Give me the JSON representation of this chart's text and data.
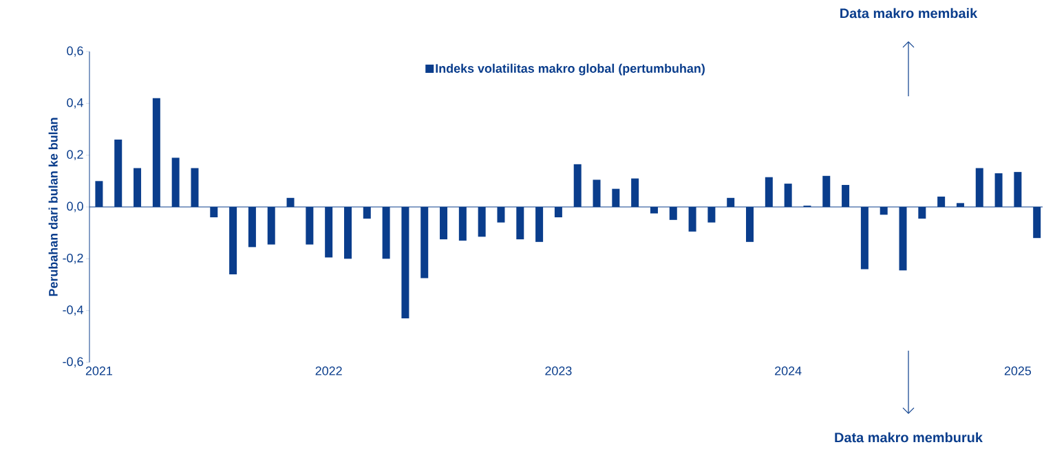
{
  "chart_data": {
    "type": "bar",
    "ylabel": "Perubahan dari bulan ke bulan",
    "categories": [
      "2021",
      null,
      null,
      null,
      null,
      null,
      null,
      null,
      null,
      null,
      null,
      null,
      "2022",
      null,
      null,
      null,
      null,
      null,
      null,
      null,
      null,
      null,
      null,
      null,
      "2023",
      null,
      null,
      null,
      null,
      null,
      null,
      null,
      null,
      null,
      null,
      null,
      "2024",
      null,
      null,
      null,
      null,
      null,
      null,
      null,
      null,
      null,
      null,
      null,
      "2025",
      null
    ],
    "series": [
      {
        "name": "Indeks volatilitas makro global (pertumbuhan)",
        "color": "#0a3d8c",
        "values": [
          0.1,
          0.26,
          0.15,
          0.42,
          0.19,
          0.15,
          -0.04,
          -0.26,
          -0.155,
          -0.145,
          0.035,
          -0.145,
          -0.195,
          -0.2,
          -0.045,
          -0.2,
          -0.43,
          -0.275,
          -0.125,
          -0.13,
          -0.115,
          -0.06,
          -0.125,
          -0.135,
          -0.04,
          0.165,
          0.105,
          0.07,
          0.11,
          -0.025,
          -0.05,
          -0.095,
          -0.06,
          0.035,
          -0.135,
          0.115,
          0.09,
          0.005,
          0.12,
          0.085,
          -0.24,
          -0.03,
          -0.245,
          -0.045,
          0.04,
          0.015,
          0.15,
          0.13,
          0.135,
          -0.12
        ]
      }
    ],
    "ylim": [
      -0.6,
      0.6
    ],
    "yticks": [
      {
        "value": -0.6,
        "label": "-0,6"
      },
      {
        "value": -0.4,
        "label": "-0,4"
      },
      {
        "value": -0.2,
        "label": "-0,2"
      },
      {
        "value": 0,
        "label": "0,0"
      },
      {
        "value": 0.2,
        "label": "0,2"
      },
      {
        "value": 0.4,
        "label": "0,4"
      },
      {
        "value": 0.6,
        "label": "0,6"
      }
    ],
    "legend": "top",
    "ref_lines": [
      {
        "axis": "y",
        "value": 0
      }
    ],
    "annotations": [
      "Data makro membaik",
      "Data makro memburuk"
    ]
  }
}
